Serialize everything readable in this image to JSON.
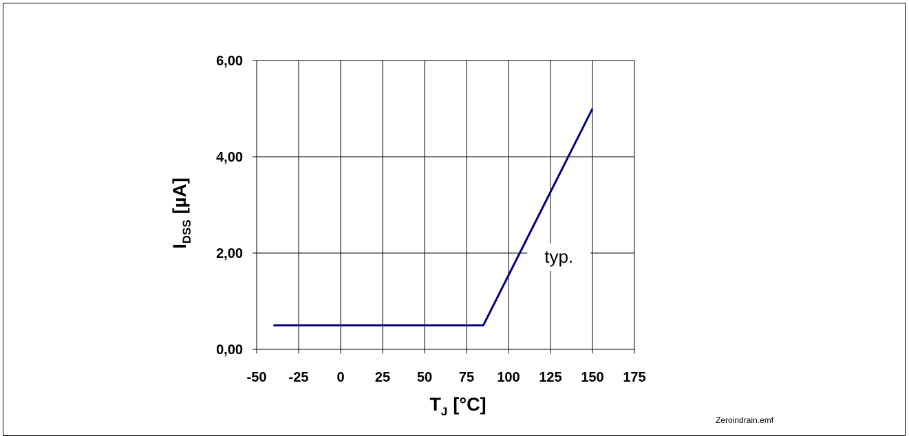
{
  "chart_data": {
    "type": "line",
    "series": [
      {
        "x": [
          -40,
          85,
          150
        ],
        "y": [
          0.5,
          0.5,
          5.0
        ]
      }
    ],
    "xlabel": {
      "main": "T",
      "sub": "J",
      "suffix": "[°C]"
    },
    "ylabel": {
      "main": "I",
      "sub": "DSS",
      "suffix": "[µA]"
    },
    "xlim": [
      -50,
      175
    ],
    "ylim": [
      0,
      6
    ],
    "x_ticks": [
      "-50",
      "-25",
      "0",
      "25",
      "50",
      "75",
      "100",
      "125",
      "150",
      "175"
    ],
    "x_tick_values": [
      -50,
      -25,
      0,
      25,
      50,
      75,
      100,
      125,
      150,
      175
    ],
    "y_ticks": [
      "0,00",
      "2,00",
      "4,00",
      "6,00"
    ],
    "y_tick_values": [
      0,
      2,
      4,
      6
    ],
    "annotation": {
      "text": "typ.",
      "x": 130,
      "y": 1.8
    },
    "grid": true,
    "line_color": "#000080"
  },
  "footer": {
    "filename": "Zeroindrain.emf"
  }
}
